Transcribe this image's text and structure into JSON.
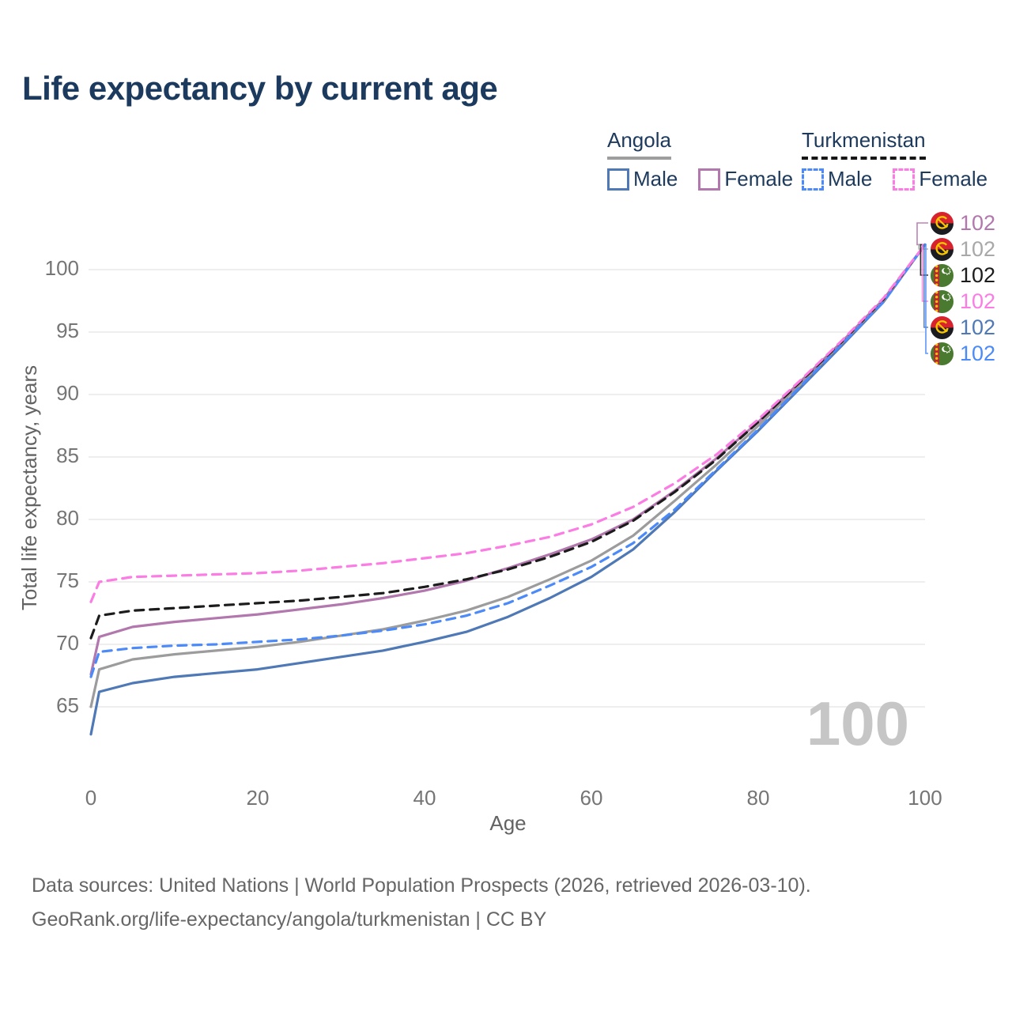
{
  "title": "Life expectancy by current age",
  "legend": {
    "groups": [
      {
        "label": "Angola",
        "line_style": "solid",
        "line_color": "#9e9e9e",
        "items": [
          {
            "label": "Male",
            "color": "#4e79b6",
            "dashed": false
          },
          {
            "label": "Female",
            "color": "#b277ad",
            "dashed": false
          }
        ]
      },
      {
        "label": "Turkmenistan",
        "line_style": "dashed",
        "line_color": "#161616",
        "items": [
          {
            "label": "Male",
            "color": "#4b8af8",
            "dashed": true
          },
          {
            "label": "Female",
            "color": "#fb7de4",
            "dashed": true
          }
        ]
      }
    ]
  },
  "watermark": "100",
  "right_labels": [
    {
      "series": "angola-female",
      "flag": "angola",
      "value": "102",
      "color": "#b277ad"
    },
    {
      "series": "angola-total",
      "flag": "angola",
      "value": "102",
      "color": "#a8a8a8"
    },
    {
      "series": "turkmenistan-total",
      "flag": "turkmenistan",
      "value": "102",
      "color": "#1c1c1c"
    },
    {
      "series": "turkmenistan-female",
      "flag": "turkmenistan",
      "value": "102",
      "color": "#fb7de4"
    },
    {
      "series": "angola-male",
      "flag": "angola",
      "value": "102",
      "color": "#4e79b6"
    },
    {
      "series": "turkmenistan-male",
      "flag": "turkmenistan",
      "value": "102",
      "color": "#4b8af8"
    }
  ],
  "footer": {
    "line1": "Data sources: United Nations | World Population Prospects (2026, retrieved 2026-03-10).",
    "line2": "GeoRank.org/life-expectancy/angola/turkmenistan | CC BY"
  },
  "chart_data": {
    "type": "line",
    "title": "Life expectancy by current age",
    "xlabel": "Age",
    "ylabel": "Total life expectancy, years",
    "x_ticks": [
      0,
      20,
      40,
      60,
      80,
      100
    ],
    "y_ticks": [
      65,
      70,
      75,
      80,
      85,
      90,
      95,
      100
    ],
    "xlim": [
      0,
      100
    ],
    "ylim": [
      62,
      103.5
    ],
    "grid": "horizontal",
    "legend_position": "top-right",
    "x": [
      0,
      1,
      5,
      10,
      15,
      20,
      25,
      30,
      35,
      40,
      45,
      50,
      55,
      60,
      65,
      70,
      75,
      80,
      85,
      90,
      95,
      100
    ],
    "series": [
      {
        "name": "Angola Male",
        "id": "angola-male",
        "country": "Angola",
        "sex": "male",
        "color": "#4e79b6",
        "dashed": false,
        "values": [
          62.8,
          66.2,
          66.9,
          67.4,
          67.7,
          68.0,
          68.5,
          69.0,
          69.5,
          70.2,
          71.0,
          72.2,
          73.7,
          75.4,
          77.6,
          80.6,
          83.9,
          87.1,
          90.5,
          93.9,
          97.4,
          102
        ]
      },
      {
        "name": "Angola",
        "id": "angola-total",
        "country": "Angola",
        "sex": "both",
        "color": "#9c9c9c",
        "dashed": false,
        "values": [
          65.0,
          68.0,
          68.8,
          69.2,
          69.5,
          69.8,
          70.2,
          70.7,
          71.2,
          71.9,
          72.7,
          73.8,
          75.2,
          76.7,
          78.7,
          81.5,
          84.4,
          87.5,
          90.8,
          94.1,
          97.5,
          102
        ]
      },
      {
        "name": "Angola Female",
        "id": "angola-female",
        "country": "Angola",
        "sex": "female",
        "color": "#b277ad",
        "dashed": false,
        "values": [
          67.6,
          70.6,
          71.4,
          71.8,
          72.1,
          72.4,
          72.8,
          73.2,
          73.7,
          74.3,
          75.1,
          76.1,
          77.2,
          78.4,
          80.0,
          82.3,
          84.9,
          87.8,
          91.0,
          94.2,
          97.6,
          102
        ]
      },
      {
        "name": "Turkmenistan",
        "id": "turkmenistan-total",
        "country": "Turkmenistan",
        "sex": "both",
        "color": "#1c1c1c",
        "dashed": true,
        "values": [
          70.5,
          72.3,
          72.7,
          72.9,
          73.1,
          73.3,
          73.5,
          73.8,
          74.1,
          74.6,
          75.2,
          76.0,
          77.0,
          78.2,
          79.9,
          82.2,
          84.8,
          87.8,
          91.0,
          94.2,
          97.6,
          102
        ]
      },
      {
        "name": "Turkmenistan Male",
        "id": "turkmenistan-male",
        "country": "Turkmenistan",
        "sex": "male",
        "color": "#4b8af8",
        "dashed": true,
        "values": [
          67.4,
          69.4,
          69.7,
          69.9,
          70.0,
          70.2,
          70.4,
          70.7,
          71.1,
          71.6,
          72.3,
          73.3,
          74.7,
          76.2,
          78.1,
          80.8,
          84.0,
          87.2,
          90.6,
          94.0,
          97.4,
          102
        ]
      },
      {
        "name": "Turkmenistan Female",
        "id": "turkmenistan-female",
        "country": "Turkmenistan",
        "sex": "female",
        "color": "#fb7de4",
        "dashed": true,
        "values": [
          73.4,
          75.0,
          75.4,
          75.5,
          75.6,
          75.7,
          75.9,
          76.2,
          76.5,
          76.9,
          77.3,
          77.9,
          78.6,
          79.6,
          81.0,
          82.9,
          85.2,
          88.0,
          91.1,
          94.3,
          97.7,
          102
        ]
      }
    ],
    "endpoint_value": 102
  }
}
